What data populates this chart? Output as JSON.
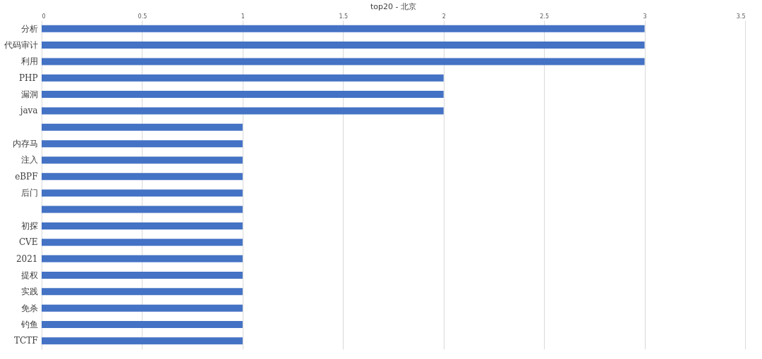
{
  "chart_data": {
    "type": "bar",
    "orientation": "horizontal",
    "title": "top20 - 北京",
    "categories": [
      "分析",
      "代码审计",
      "利用",
      "PHP",
      "漏洞",
      "java",
      null,
      "内存马",
      "注入",
      "eBPF",
      "后门",
      null,
      "初探",
      "CVE",
      "2021",
      "提权",
      "实践",
      "免杀",
      "钓鱼",
      "TCTF"
    ],
    "values": [
      3,
      3,
      3,
      2,
      2,
      2,
      1,
      1,
      1,
      1,
      1,
      1,
      1,
      1,
      1,
      1,
      1,
      1,
      1,
      1
    ],
    "color": "#4472c4",
    "xlim": [
      0,
      3.5
    ],
    "xticks": [
      0,
      0.5,
      1,
      1.5,
      2,
      2.5,
      3,
      3.5
    ],
    "grid": "x"
  }
}
